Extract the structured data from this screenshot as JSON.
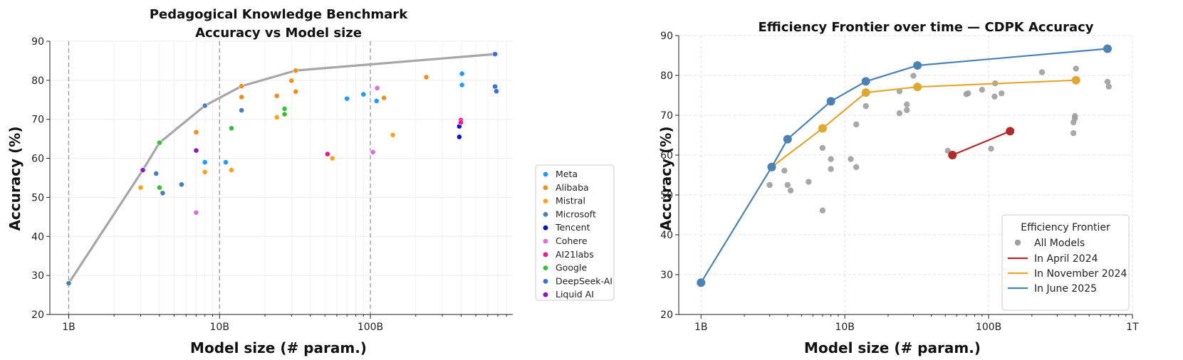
{
  "chart_data": [
    {
      "type": "scatter",
      "title": "Pedagogical Knowledge Benchmark",
      "subtitle": "Accuracy vs Model size",
      "xlabel": "Model size (# param.)",
      "ylabel": "Accuracy (%)",
      "x_scale": "log",
      "x_ticks": [
        {
          "v": 1,
          "label": "1B"
        },
        {
          "v": 10,
          "label": "10B"
        },
        {
          "v": 100,
          "label": "100B"
        }
      ],
      "y_ticks": [
        20,
        30,
        40,
        50,
        60,
        70,
        80,
        90
      ],
      "ylim": [
        20,
        90
      ],
      "grid": true,
      "legend_position": "outside-right",
      "frontier": {
        "color": "#a6a6a6",
        "points": [
          [
            1,
            28
          ],
          [
            3.1,
            57
          ],
          [
            4,
            64
          ],
          [
            8,
            73.5
          ],
          [
            14,
            78.5
          ],
          [
            32,
            82.5
          ],
          [
            671,
            86.7
          ]
        ]
      },
      "series": [
        {
          "name": "Meta",
          "color": "#1f9bff",
          "points": [
            [
              8,
              59
            ],
            [
              11,
              59
            ],
            [
              70,
              75.3
            ],
            [
              90,
              76.4
            ],
            [
              110,
              74.7
            ],
            [
              405,
              81.7
            ],
            [
              405,
              78.8
            ]
          ]
        },
        {
          "name": "Alibaba",
          "color": "#f28e1b",
          "points": [
            [
              7,
              66.7
            ],
            [
              14,
              78.5
            ],
            [
              14,
              75.7
            ],
            [
              24,
              76
            ],
            [
              30,
              79.9
            ],
            [
              32,
              82.5
            ],
            [
              32,
              77.1
            ],
            [
              123,
              75.5
            ],
            [
              235,
              80.8
            ]
          ]
        },
        {
          "name": "Mistral",
          "color": "#ffa21a",
          "points": [
            [
              3,
              52.5
            ],
            [
              8,
              56.5
            ],
            [
              12,
              57
            ],
            [
              24,
              70.5
            ],
            [
              56,
              60
            ],
            [
              141,
              66
            ]
          ]
        },
        {
          "name": "Microsoft",
          "color": "#4a7fb5",
          "points": [
            [
              1,
              28
            ],
            [
              3.8,
              56.1
            ],
            [
              4.2,
              51.1
            ],
            [
              5.6,
              53.3
            ],
            [
              14,
              72.3
            ],
            [
              8,
              73.5
            ]
          ]
        },
        {
          "name": "Tencent",
          "color": "#0a12c9",
          "points": [
            [
              389,
              68.2
            ],
            [
              389,
              65.5
            ]
          ]
        },
        {
          "name": "Cohere",
          "color": "#de6fd8",
          "points": [
            [
              7,
              46.1
            ],
            [
              104,
              61.6
            ],
            [
              111,
              78
            ]
          ]
        },
        {
          "name": "AI21labs",
          "color": "#ee1a8a",
          "points": [
            [
              52,
              61.1
            ],
            [
              398,
              69.8
            ],
            [
              398,
              69.2
            ]
          ]
        },
        {
          "name": "Google",
          "color": "#33c233",
          "points": [
            [
              4,
              64
            ],
            [
              4,
              52.5
            ],
            [
              12,
              67.7
            ],
            [
              27,
              72.7
            ],
            [
              27,
              71.3
            ]
          ]
        },
        {
          "name": "DeepSeek-AI",
          "color": "#3c6ee0",
          "points": [
            [
              671,
              86.7
            ],
            [
              671,
              78.4
            ],
            [
              685,
              77.2
            ]
          ]
        },
        {
          "name": "Liquid AI",
          "color": "#8a19c4",
          "points": [
            [
              3.1,
              57
            ],
            [
              7,
              62
            ]
          ]
        }
      ],
      "legend": [
        "Meta",
        "Alibaba",
        "Mistral",
        "Microsoft",
        "Tencent",
        "Cohere",
        "AI21labs",
        "Google",
        "DeepSeek-AI",
        "Liquid AI"
      ]
    },
    {
      "type": "line",
      "title": "Efficiency Frontier over time — CDPK Accuracy",
      "xlabel": "Model size (# param.)",
      "ylabel": "Accuracy (%)",
      "x_scale": "log",
      "x_ticks": [
        {
          "v": 1,
          "label": "1B"
        },
        {
          "v": 10,
          "label": "10B"
        },
        {
          "v": 100,
          "label": "100B"
        },
        {
          "v": 1000,
          "label": "1T"
        }
      ],
      "y_ticks": [
        20,
        30,
        40,
        50,
        60,
        70,
        80,
        90
      ],
      "ylim": [
        20,
        90
      ],
      "grid": true,
      "legend_title": "Efficiency Frontier",
      "legend_position": "bottom-right",
      "all_models": {
        "name": "All Models",
        "color": "#9e9e9e",
        "points": [
          [
            1,
            28
          ],
          [
            3,
            52.5
          ],
          [
            3.1,
            57
          ],
          [
            3.8,
            56.1
          ],
          [
            4,
            52.5
          ],
          [
            4.2,
            51.1
          ],
          [
            4,
            64
          ],
          [
            5.6,
            53.3
          ],
          [
            7,
            66.7
          ],
          [
            7,
            61.8
          ],
          [
            7,
            46.1
          ],
          [
            8,
            59
          ],
          [
            8,
            56.5
          ],
          [
            8,
            73.5
          ],
          [
            11,
            59
          ],
          [
            12,
            57
          ],
          [
            12,
            67.7
          ],
          [
            14,
            72.3
          ],
          [
            14,
            78.5
          ],
          [
            14,
            75.7
          ],
          [
            24,
            76
          ],
          [
            24,
            70.5
          ],
          [
            27,
            72.7
          ],
          [
            27,
            71.3
          ],
          [
            30,
            79.9
          ],
          [
            32,
            82.5
          ],
          [
            32,
            77.1
          ],
          [
            52,
            61.1
          ],
          [
            56,
            60
          ],
          [
            70,
            75.3
          ],
          [
            72,
            75.5
          ],
          [
            90,
            76.4
          ],
          [
            104,
            61.6
          ],
          [
            110,
            74.7
          ],
          [
            111,
            78
          ],
          [
            123,
            75.5
          ],
          [
            141,
            66
          ],
          [
            235,
            80.8
          ],
          [
            389,
            68.2
          ],
          [
            389,
            65.5
          ],
          [
            398,
            69.8
          ],
          [
            398,
            69.2
          ],
          [
            405,
            81.7
          ],
          [
            405,
            78.8
          ],
          [
            671,
            86.7
          ],
          [
            671,
            78.4
          ],
          [
            685,
            77.2
          ]
        ]
      },
      "series": [
        {
          "name": "In April 2024",
          "color": "#b22a2a",
          "points": [
            [
              56,
              60
            ],
            [
              141,
              66
            ]
          ]
        },
        {
          "name": "In November 2024",
          "color": "#e0a82e",
          "points": [
            [
              3.1,
              57
            ],
            [
              7,
              66.7
            ],
            [
              14,
              75.7
            ],
            [
              32,
              77.1
            ],
            [
              405,
              78.8
            ]
          ]
        },
        {
          "name": "In June 2025",
          "color": "#4a82b4",
          "points": [
            [
              1,
              28
            ],
            [
              3.1,
              57
            ],
            [
              4,
              64
            ],
            [
              8,
              73.5
            ],
            [
              14,
              78.5
            ],
            [
              32,
              82.5
            ],
            [
              671,
              86.7
            ]
          ]
        }
      ]
    }
  ]
}
